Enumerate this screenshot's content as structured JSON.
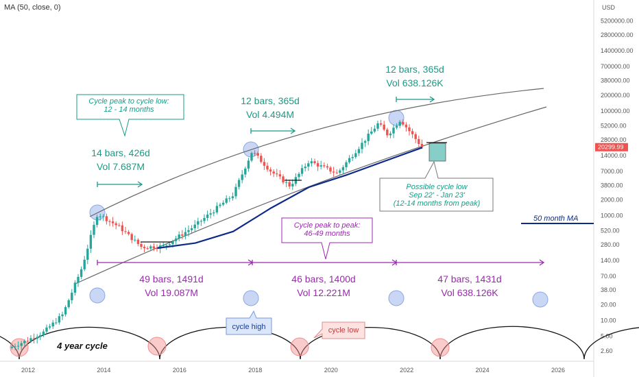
{
  "indicator_label": "MA (50, close, 0)",
  "currency": "USD",
  "price_tag": "20299.99",
  "colors": {
    "green": "#169c86",
    "purple": "#9c27b0",
    "navy": "#0d2a8a",
    "up": "#26a69a",
    "down": "#ef5350",
    "blue_circle": "#8aa7e6",
    "red_circle": "#f28b8b"
  },
  "chart_data": {
    "type": "line",
    "title": "",
    "scale": "log",
    "x_ticks": [
      "2012",
      "2014",
      "2016",
      "2018",
      "2020",
      "2022",
      "2024",
      "2026"
    ],
    "y_ticks": [
      "5200000.00",
      "2800000.00",
      "1400000.00",
      "700000.00",
      "380000.00",
      "200000.00",
      "100000.00",
      "52000.00",
      "28000.00",
      "14000.00",
      "7000.00",
      "3800.00",
      "2000.00",
      "1000.00",
      "520.00",
      "280.00",
      "140.00",
      "70.00",
      "38.00",
      "20.00",
      "10.00",
      "5.00",
      "2.60"
    ],
    "series": [
      {
        "name": "50 month MA",
        "values": [
          {
            "x": "2015-06",
            "y": 240
          },
          {
            "x": "2016-06",
            "y": 300
          },
          {
            "x": "2017-06",
            "y": 500
          },
          {
            "x": "2018-06",
            "y": 1400
          },
          {
            "x": "2019-06",
            "y": 3500
          },
          {
            "x": "2020-06",
            "y": 6000
          },
          {
            "x": "2021-06",
            "y": 11000
          },
          {
            "x": "2022-06",
            "y": 20000
          }
        ]
      }
    ],
    "price_points": [
      {
        "x": "2011-07",
        "y": 3
      },
      {
        "x": "2011-12",
        "y": 4
      },
      {
        "x": "2012-06",
        "y": 6
      },
      {
        "x": "2012-12",
        "y": 13
      },
      {
        "x": "2013-06",
        "y": 100
      },
      {
        "x": "2013-11",
        "y": 1100
      },
      {
        "x": "2014-06",
        "y": 600
      },
      {
        "x": "2015-01",
        "y": 250
      },
      {
        "x": "2015-08",
        "y": 260
      },
      {
        "x": "2016-06",
        "y": 650
      },
      {
        "x": "2017-06",
        "y": 2500
      },
      {
        "x": "2017-12",
        "y": 17000
      },
      {
        "x": "2018-06",
        "y": 7000
      },
      {
        "x": "2018-12",
        "y": 3700
      },
      {
        "x": "2019-06",
        "y": 11000
      },
      {
        "x": "2020-03",
        "y": 6400
      },
      {
        "x": "2020-12",
        "y": 29000
      },
      {
        "x": "2021-04",
        "y": 58000
      },
      {
        "x": "2021-07",
        "y": 35000
      },
      {
        "x": "2021-11",
        "y": 68000
      },
      {
        "x": "2022-06",
        "y": 20000
      }
    ],
    "annotations": {
      "cycle_peak_to_low": [
        "Cycle peak to cycle low:",
        "12 - 14 months"
      ],
      "bars1": [
        "14 bars, 426d",
        "Vol 7.687M"
      ],
      "bars2": [
        "12 bars, 365d",
        "Vol 4.494M"
      ],
      "bars3": [
        "12 bars, 365d",
        "Vol 638.126K"
      ],
      "possible_low": [
        "Possible cycle low",
        "Sep 22' - Jan 23'",
        "(12-14 months from peak)"
      ],
      "ma_label": "50 month MA",
      "peak_to_peak": [
        "Cycle peak to peak:",
        "46-49 months"
      ],
      "p1": [
        "49 bars, 1491d",
        "Vol 19.087M"
      ],
      "p2": [
        "46 bars, 1400d",
        "Vol 12.221M"
      ],
      "p3": [
        "47 bars, 1431d",
        "Vol 638.126K"
      ],
      "cycle_high": "cycle high",
      "cycle_low": "cycle low",
      "four_year": "4 year cycle"
    }
  }
}
